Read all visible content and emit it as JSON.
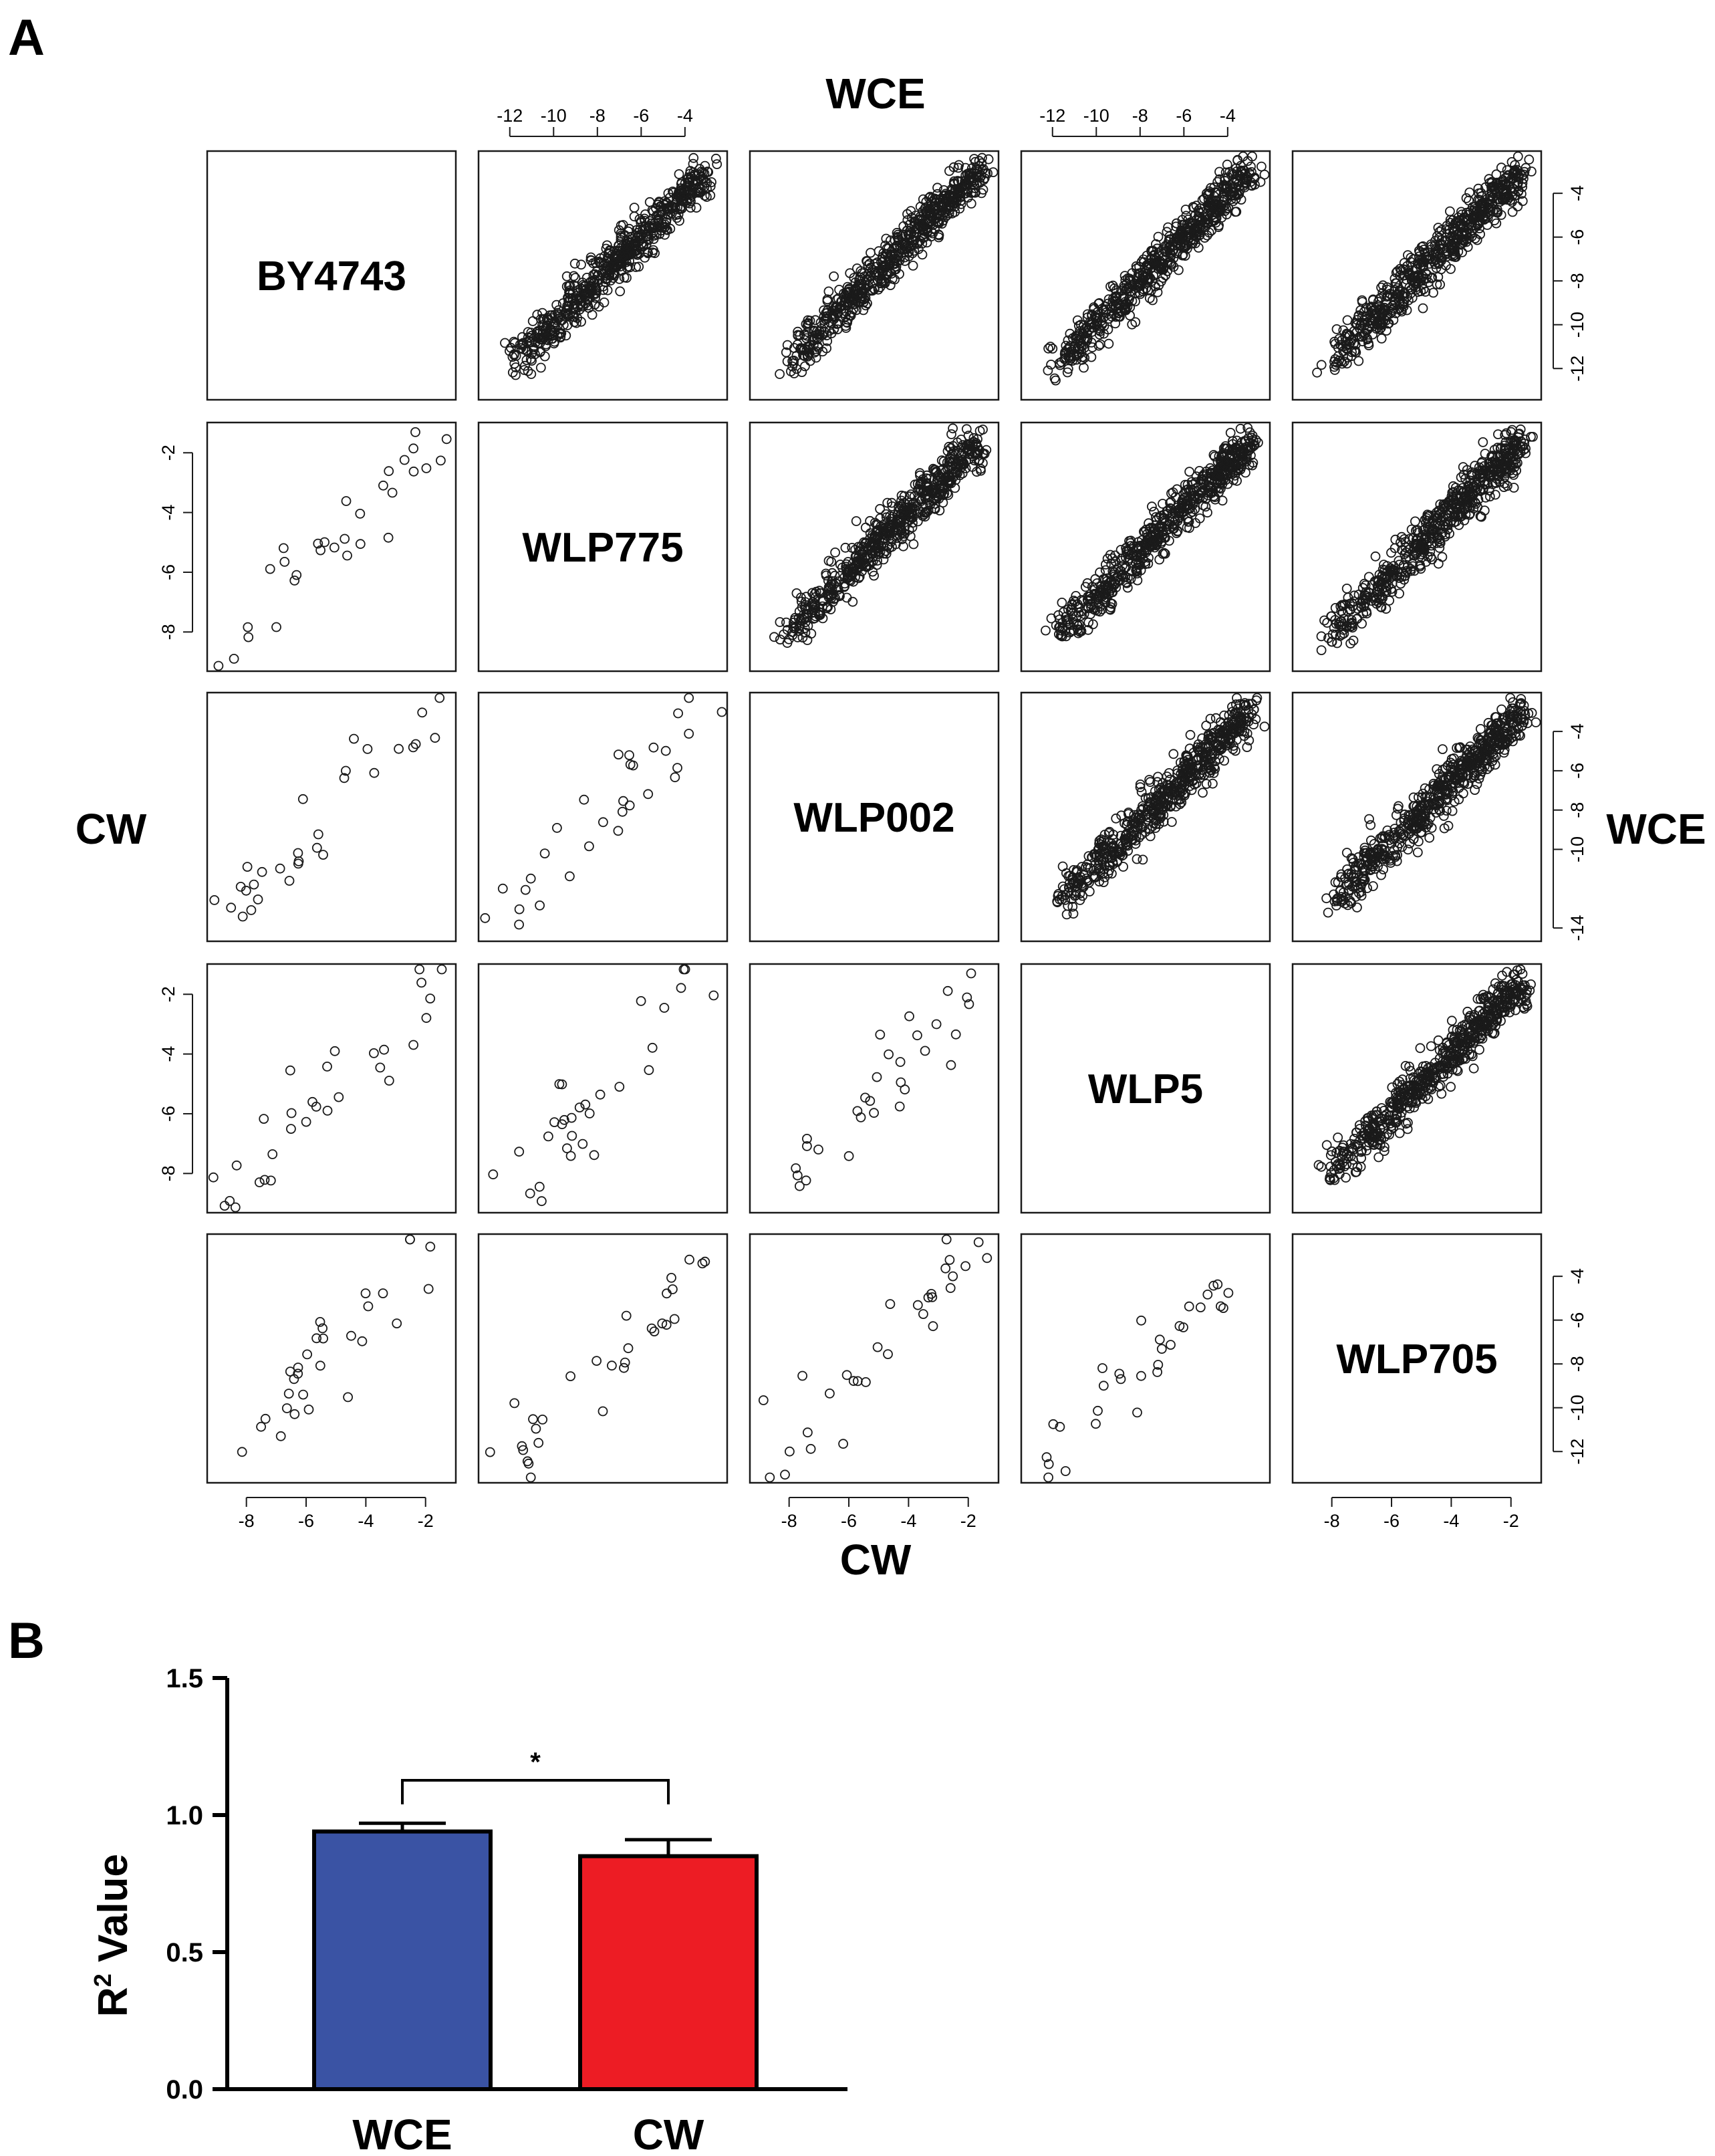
{
  "panel_a_letter": "A",
  "panel_b_letter": "B",
  "chart_data": [
    {
      "type": "scatter",
      "panel": "A",
      "description_type": "scatterplot-matrix",
      "strains": [
        "BY4743",
        "WLP775",
        "WLP002",
        "WLP5",
        "WLP705"
      ],
      "top_title": "WCE",
      "right_title": "WCE",
      "left_title": "CW",
      "bottom_title": "CW",
      "upper_triangle": "WCE",
      "lower_triangle": "CW",
      "wce_ticks_top": [
        "-12",
        "-10",
        "-8",
        "-6",
        "-4"
      ],
      "wce_ticks_right_a": [
        "-4",
        "-6",
        "-8",
        "-10",
        "-12"
      ],
      "wce_ticks_right_b": [
        "-4",
        "-6",
        "-8",
        "-10",
        "-14"
      ],
      "cw_ticks_left": [
        "-2",
        "-4",
        "-6",
        "-8"
      ],
      "cw_ticks_bottom": [
        "-8",
        "-6",
        "-4",
        "-2"
      ],
      "wce_range": [
        -13,
        -2.5
      ],
      "cw_range": [
        -9,
        -1.3
      ],
      "wce_points_per_panel": 600,
      "cw_points_per_panel": 30
    },
    {
      "type": "bar",
      "panel": "B",
      "categories": [
        "WCE",
        "CW"
      ],
      "values": [
        0.94,
        0.85
      ],
      "errors": [
        0.03,
        0.06
      ],
      "colors": [
        "#3a53a4",
        "#ed1c24"
      ],
      "ylabel": "R² Value",
      "ylabel_main": "R",
      "ylabel_sup": "2",
      "ylabel_rest": " Value",
      "ylim": [
        0.0,
        1.5
      ],
      "yticks": [
        "0.0",
        "0.5",
        "1.0",
        "1.5"
      ],
      "significance": "*"
    }
  ]
}
